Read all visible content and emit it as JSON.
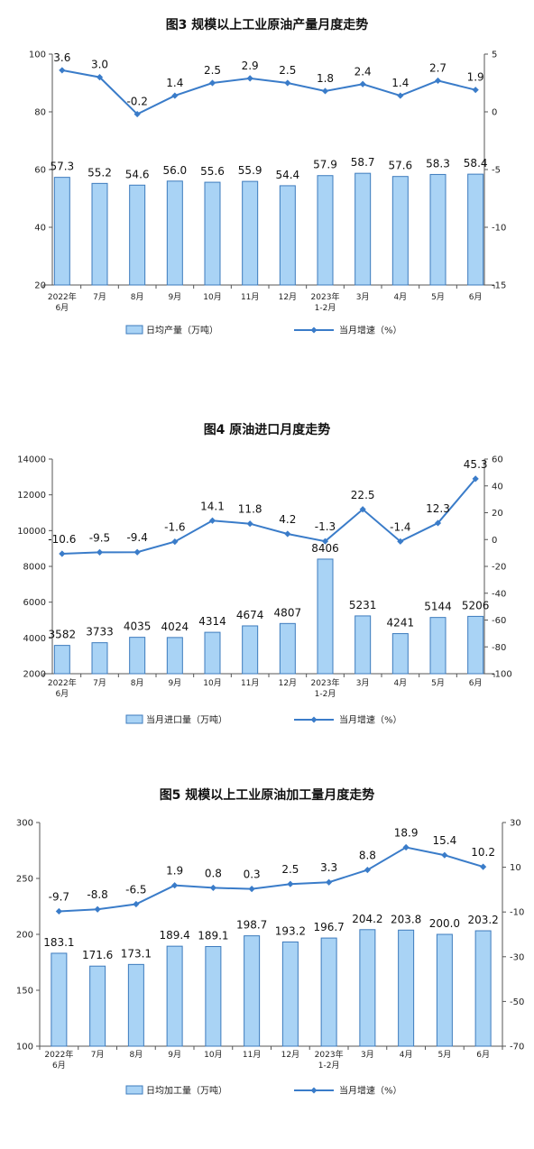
{
  "colors": {
    "bar_fill": "#a9d3f5",
    "bar_stroke": "#3d7bbd",
    "line": "#3a7cc9",
    "axis": "#555555"
  },
  "chart_data": [
    {
      "type": "bar",
      "title": "图3  规模以上工业原油产量月度走势",
      "categories": [
        [
          "2022年",
          "6月"
        ],
        [
          "7月"
        ],
        [
          "8月"
        ],
        [
          "9月"
        ],
        [
          "10月"
        ],
        [
          "11月"
        ],
        [
          "12月"
        ],
        [
          "2023年",
          "1-2月"
        ],
        [
          "3月"
        ],
        [
          "4月"
        ],
        [
          "5月"
        ],
        [
          "6月"
        ]
      ],
      "bars": {
        "name": "日均产量（万吨）",
        "values": [
          57.3,
          55.2,
          54.6,
          56.0,
          55.6,
          55.9,
          54.4,
          57.9,
          58.7,
          57.6,
          58.3,
          58.4
        ],
        "labels": [
          "57.3",
          "55.2",
          "54.6",
          "56.0",
          "55.6",
          "55.9",
          "54.4",
          "57.9",
          "58.7",
          "57.6",
          "58.3",
          "58.4"
        ]
      },
      "line": {
        "name": "当月增速（%）",
        "values": [
          3.6,
          3.0,
          -0.2,
          1.4,
          2.5,
          2.9,
          2.5,
          1.8,
          2.4,
          1.4,
          2.7,
          1.9
        ],
        "labels": [
          "3.6",
          "3.0",
          "-0.2",
          "1.4",
          "2.5",
          "2.9",
          "2.5",
          "1.8",
          "2.4",
          "1.4",
          "2.7",
          "1.9"
        ]
      },
      "y_left": {
        "min": 20,
        "max": 100,
        "ticks": [
          "20",
          "40",
          "60",
          "80",
          "100"
        ]
      },
      "y_right": {
        "min": -15,
        "max": 5,
        "ticks": [
          "-15",
          "-10",
          "-5",
          "0",
          "5"
        ]
      },
      "grid": false,
      "legend": "bottom"
    },
    {
      "type": "bar",
      "title": "图4  原油进口月度走势",
      "categories": [
        [
          "2022年",
          "6月"
        ],
        [
          "7月"
        ],
        [
          "8月"
        ],
        [
          "9月"
        ],
        [
          "10月"
        ],
        [
          "11月"
        ],
        [
          "12月"
        ],
        [
          "2023年",
          "1-2月"
        ],
        [
          "3月"
        ],
        [
          "4月"
        ],
        [
          "5月"
        ],
        [
          "6月"
        ]
      ],
      "bars": {
        "name": "当月进口量（万吨）",
        "values": [
          3582,
          3733,
          4035,
          4024,
          4314,
          4674,
          4807,
          8406,
          5231,
          4241,
          5144,
          5206
        ],
        "labels": [
          "3582",
          "3733",
          "4035",
          "4024",
          "4314",
          "4674",
          "4807",
          "8406",
          "5231",
          "4241",
          "5144",
          "5206"
        ]
      },
      "line": {
        "name": "当月增速（%）",
        "values": [
          -10.6,
          -9.5,
          -9.4,
          -1.6,
          14.1,
          11.8,
          4.2,
          -1.3,
          22.5,
          -1.4,
          12.3,
          45.3
        ],
        "labels": [
          "-10.6",
          "-9.5",
          "-9.4",
          "-1.6",
          "14.1",
          "11.8",
          "4.2",
          "-1.3",
          "22.5",
          "-1.4",
          "12.3",
          "45.3"
        ]
      },
      "y_left": {
        "min": 2000,
        "max": 14000,
        "ticks": [
          "2000",
          "4000",
          "6000",
          "8000",
          "10000",
          "12000",
          "14000"
        ]
      },
      "y_right": {
        "min": -100,
        "max": 60,
        "ticks": [
          "-100",
          "-80",
          "-60",
          "-40",
          "-20",
          "0",
          "20",
          "40",
          "60"
        ]
      },
      "grid": false,
      "legend": "bottom"
    },
    {
      "type": "bar",
      "title": "图5  规模以上工业原油加工量月度走势",
      "categories": [
        [
          "2022年",
          "6月"
        ],
        [
          "7月"
        ],
        [
          "8月"
        ],
        [
          "9月"
        ],
        [
          "10月"
        ],
        [
          "11月"
        ],
        [
          "12月"
        ],
        [
          "2023年",
          "1-2月"
        ],
        [
          "3月"
        ],
        [
          "4月"
        ],
        [
          "5月"
        ],
        [
          "6月"
        ]
      ],
      "bars": {
        "name": "日均加工量（万吨）",
        "values": [
          183.1,
          171.6,
          173.1,
          189.4,
          189.1,
          198.7,
          193.2,
          196.7,
          204.2,
          203.8,
          200.0,
          203.2
        ],
        "labels": [
          "183.1",
          "171.6",
          "173.1",
          "189.4",
          "189.1",
          "198.7",
          "193.2",
          "196.7",
          "204.2",
          "203.8",
          "200.0",
          "203.2"
        ]
      },
      "line": {
        "name": "当月增速（%）",
        "values": [
          -9.7,
          -8.8,
          -6.5,
          1.9,
          0.8,
          0.3,
          2.5,
          3.3,
          8.8,
          18.9,
          15.4,
          10.2
        ],
        "labels": [
          "-9.7",
          "-8.8",
          "-6.5",
          "1.9",
          "0.8",
          "0.3",
          "2.5",
          "3.3",
          "8.8",
          "18.9",
          "15.4",
          "10.2"
        ]
      },
      "y_left": {
        "min": 100,
        "max": 300,
        "ticks": [
          "100",
          "150",
          "200",
          "250",
          "300"
        ]
      },
      "y_right": {
        "min": -70,
        "max": 30,
        "ticks": [
          "-70",
          "-50",
          "-30",
          "-10",
          "10",
          "30"
        ]
      },
      "grid": false,
      "legend": "bottom"
    }
  ]
}
